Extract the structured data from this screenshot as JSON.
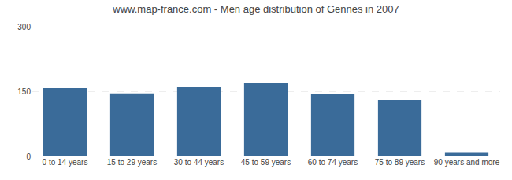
{
  "chart_data": {
    "type": "bar",
    "title": "www.map-france.com - Men age distribution of Gennes in 2007",
    "categories": [
      "0 to 14 years",
      "15 to 29 years",
      "30 to 44 years",
      "45 to 59 years",
      "60 to 74 years",
      "75 to 89 years",
      "90 years and more"
    ],
    "values": [
      158,
      146,
      160,
      170,
      144,
      131,
      8
    ],
    "color": "#3a6b99",
    "ylim": [
      0,
      300
    ],
    "yticks": [
      0,
      150,
      300
    ],
    "grid": true
  }
}
